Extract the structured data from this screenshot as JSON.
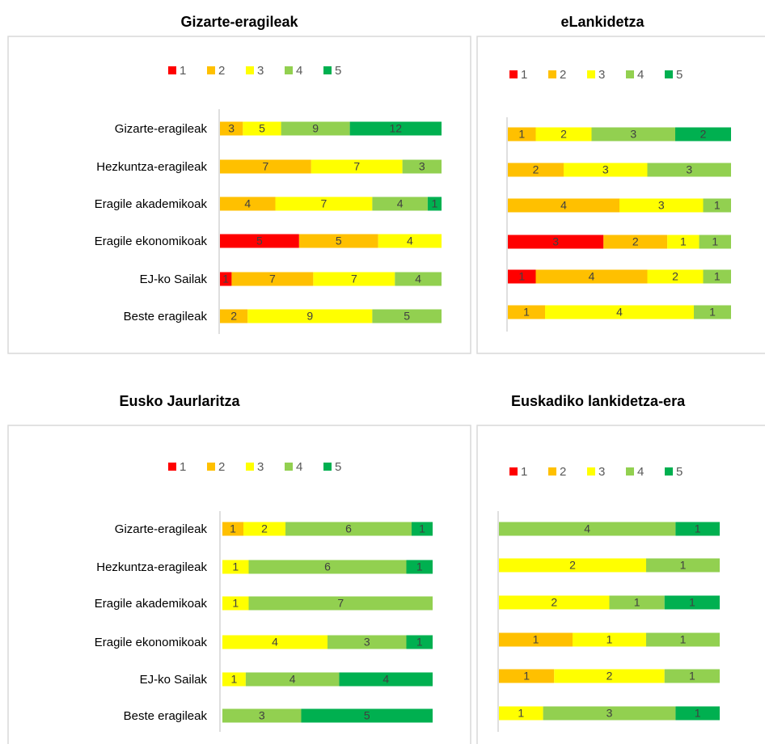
{
  "chart_data": [
    {
      "type": "bar",
      "stacking": "percent",
      "title": "Gizarte-eragileak",
      "categories": [
        "Gizarte-eragileak",
        "Hezkuntza-eragileak",
        "Eragile akademikoak",
        "Eragile ekonomikoak",
        "EJ-ko Sailak",
        "Beste eragileak"
      ],
      "series": [
        {
          "name": "1",
          "color": "#ff0000",
          "values": [
            null,
            null,
            null,
            5,
            1,
            null
          ]
        },
        {
          "name": "2",
          "color": "#ffc000",
          "values": [
            3,
            7,
            4,
            5,
            7,
            2
          ]
        },
        {
          "name": "3",
          "color": "#ffff00",
          "values": [
            5,
            7,
            7,
            4,
            7,
            9
          ]
        },
        {
          "name": "4",
          "color": "#92d050",
          "values": [
            9,
            3,
            4,
            null,
            4,
            5
          ]
        },
        {
          "name": "5",
          "color": "#00b050",
          "values": [
            12,
            null,
            1,
            null,
            null,
            null
          ]
        }
      ]
    },
    {
      "type": "bar",
      "stacking": "percent",
      "title": "eLankidetza",
      "categories": [
        null,
        null,
        null,
        null,
        null,
        null
      ],
      "series": [
        {
          "name": "1",
          "color": "#ff0000",
          "values": [
            null,
            null,
            null,
            3,
            1,
            null
          ]
        },
        {
          "name": "2",
          "color": "#ffc000",
          "values": [
            1,
            2,
            4,
            2,
            4,
            1
          ]
        },
        {
          "name": "3",
          "color": "#ffff00",
          "values": [
            2,
            3,
            3,
            1,
            2,
            4
          ]
        },
        {
          "name": "4",
          "color": "#92d050",
          "values": [
            3,
            3,
            1,
            1,
            1,
            1
          ]
        },
        {
          "name": "5",
          "color": "#00b050",
          "values": [
            2,
            null,
            null,
            null,
            null,
            null
          ]
        }
      ]
    },
    {
      "type": "bar",
      "stacking": "percent",
      "title": "Eusko Jaurlaritza",
      "categories": [
        "Gizarte-eragileak",
        "Hezkuntza-eragileak",
        "Eragile akademikoak",
        "Eragile ekonomikoak",
        "EJ-ko Sailak",
        "Beste eragileak"
      ],
      "series": [
        {
          "name": "1",
          "color": "#ff0000",
          "values": [
            null,
            null,
            null,
            null,
            null,
            null
          ]
        },
        {
          "name": "2",
          "color": "#ffc000",
          "values": [
            1,
            null,
            null,
            null,
            null,
            null
          ]
        },
        {
          "name": "3",
          "color": "#ffff00",
          "values": [
            2,
            1,
            1,
            4,
            1,
            null
          ]
        },
        {
          "name": "4",
          "color": "#92d050",
          "values": [
            6,
            6,
            7,
            3,
            4,
            3
          ]
        },
        {
          "name": "5",
          "color": "#00b050",
          "values": [
            1,
            1,
            null,
            1,
            4,
            5
          ]
        }
      ]
    },
    {
      "type": "bar",
      "stacking": "percent",
      "title": "Euskadiko lankidetza-era",
      "categories": [
        null,
        null,
        null,
        null,
        null,
        null
      ],
      "series": [
        {
          "name": "1",
          "color": "#ff0000",
          "values": [
            null,
            null,
            null,
            null,
            null,
            null
          ]
        },
        {
          "name": "2",
          "color": "#ffc000",
          "values": [
            null,
            null,
            null,
            1,
            1,
            null
          ]
        },
        {
          "name": "3",
          "color": "#ffff00",
          "values": [
            null,
            2,
            2,
            1,
            2,
            1
          ]
        },
        {
          "name": "4",
          "color": "#92d050",
          "values": [
            4,
            1,
            1,
            1,
            1,
            3
          ]
        },
        {
          "name": "5",
          "color": "#00b050",
          "values": [
            1,
            null,
            1,
            null,
            null,
            1
          ]
        }
      ]
    }
  ]
}
